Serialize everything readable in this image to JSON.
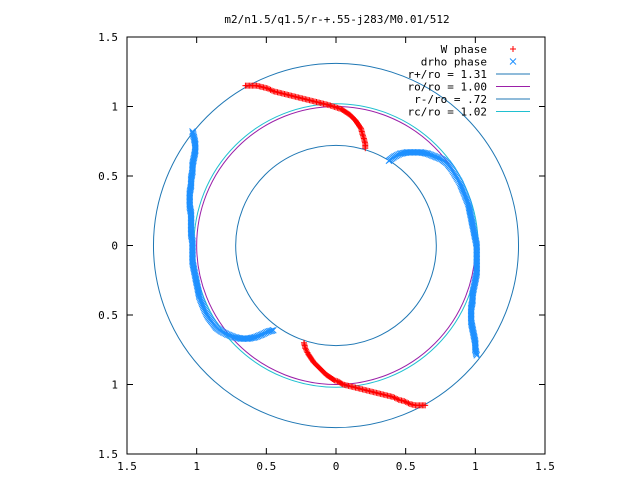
{
  "chart_data": {
    "type": "scatter",
    "title": "m2/n1.5/q1.5/r-+.55-j283/M0.01/512",
    "xlim": [
      -1.5,
      1.5
    ],
    "ylim": [
      -1.5,
      1.5
    ],
    "x_ticks": [
      -1.5,
      -1,
      -0.5,
      0,
      0.5,
      1,
      1.5
    ],
    "y_ticks": [
      -1.5,
      -1,
      -0.5,
      0,
      0.5,
      1,
      1.5
    ],
    "x_tick_labels": [
      "1.5",
      "1",
      "0.5",
      "0",
      "0.5",
      "1",
      "1.5"
    ],
    "y_tick_labels": [
      "1.5",
      "1",
      "0.5",
      "0",
      "0.5",
      "1",
      "1.5"
    ],
    "grid": false,
    "legend_position": "top-right",
    "circles": [
      {
        "name": "r+/ro = 1.31",
        "radius": 1.31,
        "color": "#1f77b4"
      },
      {
        "name": "ro/ro = 1.00",
        "radius": 1.0,
        "color": "#9b1fa8"
      },
      {
        "name": "r-/ro = .72",
        "radius": 0.72,
        "color": "#1f77b4"
      },
      {
        "name": "rc/ro = 1.02",
        "radius": 1.02,
        "color": "#20c0d0"
      }
    ],
    "series": [
      {
        "name": "W phase",
        "marker": "+",
        "color": "#ff0000",
        "points": [
          [
            -0.65,
            1.15
          ],
          [
            -0.61,
            1.15
          ],
          [
            -0.57,
            1.15
          ],
          [
            -0.53,
            1.14
          ],
          [
            -0.49,
            1.13
          ],
          [
            -0.45,
            1.11
          ],
          [
            -0.41,
            1.1
          ],
          [
            -0.37,
            1.09
          ],
          [
            -0.33,
            1.08
          ],
          [
            -0.29,
            1.07
          ],
          [
            -0.25,
            1.06
          ],
          [
            -0.21,
            1.05
          ],
          [
            -0.17,
            1.04
          ],
          [
            -0.13,
            1.03
          ],
          [
            -0.09,
            1.02
          ],
          [
            -0.05,
            1.01
          ],
          [
            -0.02,
            1.0
          ],
          [
            0.01,
            0.99
          ],
          [
            0.04,
            0.98
          ],
          [
            0.07,
            0.96
          ],
          [
            0.1,
            0.94
          ],
          [
            0.12,
            0.92
          ],
          [
            0.14,
            0.9
          ],
          [
            0.16,
            0.87
          ],
          [
            0.18,
            0.84
          ],
          [
            0.19,
            0.8
          ],
          [
            0.2,
            0.77
          ],
          [
            0.21,
            0.73
          ],
          [
            0.21,
            0.7
          ],
          [
            -0.23,
            -0.7
          ],
          [
            -0.22,
            -0.74
          ],
          [
            -0.2,
            -0.78
          ],
          [
            -0.18,
            -0.81
          ],
          [
            -0.16,
            -0.84
          ],
          [
            -0.13,
            -0.87
          ],
          [
            -0.1,
            -0.9
          ],
          [
            -0.07,
            -0.93
          ],
          [
            -0.04,
            -0.95
          ],
          [
            -0.01,
            -0.97
          ],
          [
            0.02,
            -0.98
          ],
          [
            0.05,
            -1.0
          ],
          [
            0.09,
            -1.01
          ],
          [
            0.13,
            -1.02
          ],
          [
            0.17,
            -1.03
          ],
          [
            0.21,
            -1.04
          ],
          [
            0.25,
            -1.05
          ],
          [
            0.29,
            -1.06
          ],
          [
            0.33,
            -1.07
          ],
          [
            0.37,
            -1.08
          ],
          [
            0.41,
            -1.09
          ],
          [
            0.45,
            -1.11
          ],
          [
            0.49,
            -1.12
          ],
          [
            0.53,
            -1.14
          ],
          [
            0.57,
            -1.15
          ],
          [
            0.61,
            -1.15
          ],
          [
            0.64,
            -1.15
          ]
        ]
      },
      {
        "name": "drho phase",
        "marker": "x",
        "color": "#1e90ff",
        "points": [
          [
            -1.03,
            0.82
          ],
          [
            -1.02,
            0.78
          ],
          [
            -1.01,
            0.73
          ],
          [
            -1.01,
            0.68
          ],
          [
            -1.02,
            0.63
          ],
          [
            -1.03,
            0.58
          ],
          [
            -1.03,
            0.53
          ],
          [
            -1.04,
            0.48
          ],
          [
            -1.04,
            0.43
          ],
          [
            -1.05,
            0.38
          ],
          [
            -1.05,
            0.33
          ],
          [
            -1.05,
            0.28
          ],
          [
            -1.04,
            0.23
          ],
          [
            -1.04,
            0.18
          ],
          [
            -1.04,
            0.13
          ],
          [
            -1.04,
            0.08
          ],
          [
            -1.03,
            0.03
          ],
          [
            -1.03,
            -0.02
          ],
          [
            -1.03,
            -0.07
          ],
          [
            -1.03,
            -0.12
          ],
          [
            -1.02,
            -0.17
          ],
          [
            -1.01,
            -0.22
          ],
          [
            -1.0,
            -0.27
          ],
          [
            -0.99,
            -0.32
          ],
          [
            -0.98,
            -0.37
          ],
          [
            -0.96,
            -0.42
          ],
          [
            -0.94,
            -0.47
          ],
          [
            -0.92,
            -0.51
          ],
          [
            -0.89,
            -0.55
          ],
          [
            -0.86,
            -0.59
          ],
          [
            -0.82,
            -0.62
          ],
          [
            -0.78,
            -0.64
          ],
          [
            -0.73,
            -0.66
          ],
          [
            -0.68,
            -0.67
          ],
          [
            -0.63,
            -0.67
          ],
          [
            -0.58,
            -0.66
          ],
          [
            -0.53,
            -0.64
          ],
          [
            -0.49,
            -0.62
          ],
          [
            -0.45,
            -0.61
          ],
          [
            0.38,
            0.61
          ],
          [
            0.42,
            0.64
          ],
          [
            0.46,
            0.66
          ],
          [
            0.51,
            0.67
          ],
          [
            0.56,
            0.67
          ],
          [
            0.61,
            0.67
          ],
          [
            0.66,
            0.66
          ],
          [
            0.71,
            0.64
          ],
          [
            0.76,
            0.62
          ],
          [
            0.8,
            0.59
          ],
          [
            0.83,
            0.55
          ],
          [
            0.86,
            0.5
          ],
          [
            0.89,
            0.45
          ],
          [
            0.91,
            0.4
          ],
          [
            0.93,
            0.35
          ],
          [
            0.95,
            0.3
          ],
          [
            0.96,
            0.25
          ],
          [
            0.97,
            0.2
          ],
          [
            0.98,
            0.15
          ],
          [
            0.99,
            0.1
          ],
          [
            1.0,
            0.05
          ],
          [
            1.01,
            0.0
          ],
          [
            1.01,
            -0.05
          ],
          [
            1.01,
            -0.1
          ],
          [
            1.01,
            -0.15
          ],
          [
            1.01,
            -0.2
          ],
          [
            1.0,
            -0.25
          ],
          [
            0.99,
            -0.3
          ],
          [
            0.98,
            -0.35
          ],
          [
            0.98,
            -0.4
          ],
          [
            0.97,
            -0.45
          ],
          [
            0.97,
            -0.5
          ],
          [
            0.97,
            -0.55
          ],
          [
            0.98,
            -0.6
          ],
          [
            0.99,
            -0.65
          ],
          [
            1.0,
            -0.7
          ],
          [
            1.0,
            -0.75
          ],
          [
            1.01,
            -0.79
          ]
        ]
      }
    ]
  }
}
